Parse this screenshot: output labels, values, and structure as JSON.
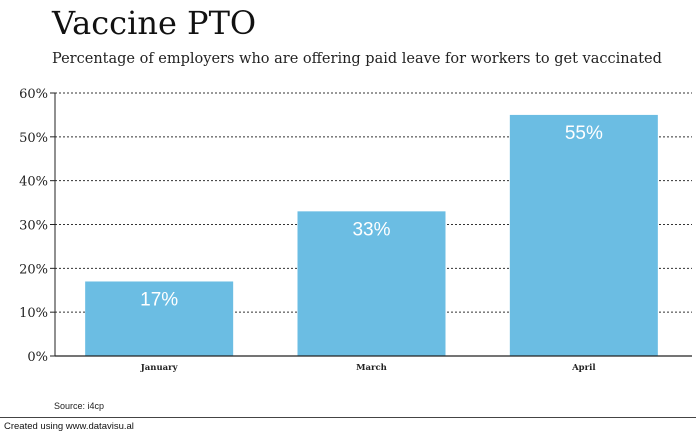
{
  "chart_data": {
    "type": "bar",
    "title": "Vaccine PTO",
    "subtitle": "Percentage of employers who are offering paid leave for workers to get vaccinated",
    "categories": [
      "January",
      "March",
      "April"
    ],
    "values": [
      17,
      33,
      55
    ],
    "value_labels": [
      "17%",
      "33%",
      "55%"
    ],
    "yticks": [
      0,
      10,
      20,
      30,
      40,
      50,
      60
    ],
    "ytick_labels": [
      "0%",
      "10%",
      "20%",
      "30%",
      "40%",
      "50%",
      "60%"
    ],
    "ylim": [
      0,
      60
    ],
    "grid": true,
    "bar_color": "#6bbde3",
    "xlabel": "",
    "ylabel": ""
  },
  "source": "Source: i4cp",
  "footer": "Created using www.datavisu.al"
}
